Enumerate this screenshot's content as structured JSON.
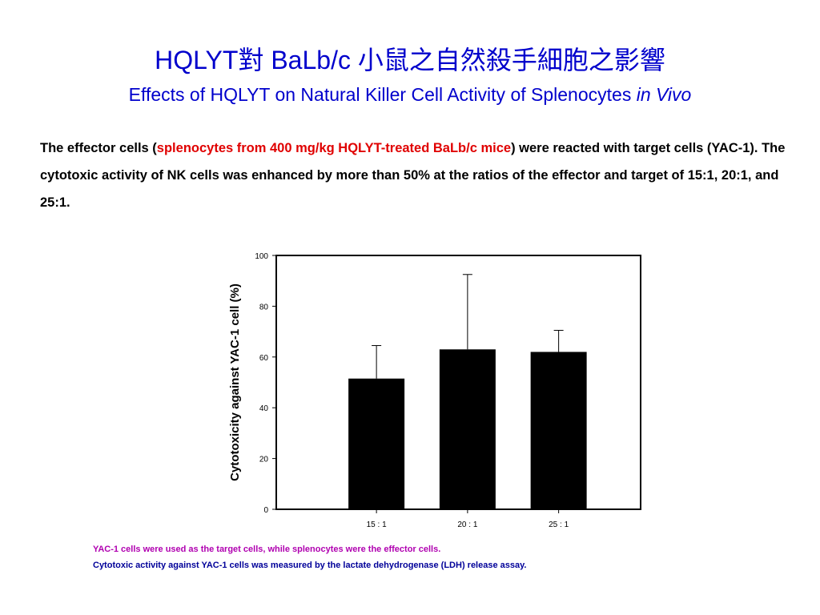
{
  "slide": {
    "title_zh": "HQLYT對 BaLb/c 小鼠之自然殺手細胞之影響",
    "title_en_main": "Effects of HQLYT on Natural Killer Cell Activity of Splenocytes ",
    "title_en_italic": "in Vivo",
    "desc_part1": "The effector cells (",
    "desc_highlight": "splenocytes from 400 mg/kg HQLYT-treated BaLb/c mice",
    "desc_part2": ") were reacted with target cells (YAC-1).  The cytotoxic activity of NK cells was enhanced by more than 50% at the ratios of the effector and target of 15:1, 20:1, and 25:1.",
    "footnote1": "YAC-1 cells were used as the target cells, while splenocytes were the effector cells.",
    "footnote2": "Cytotoxic activity against YAC-1 cells was measured by the lactate dehydrogenase (LDH) release assay.",
    "colors": {
      "title": "#0000cc",
      "highlight": "#e00000",
      "footnote1": "#b000b0",
      "footnote2": "#000099",
      "bar": "#000000"
    }
  },
  "chart_data": {
    "type": "bar",
    "title": "",
    "xlabel": "",
    "ylabel": "Cytotoxicity against YAC-1 cell (%)",
    "categories": [
      "15 : 1",
      "20 : 1",
      "25 : 1"
    ],
    "values": [
      51.5,
      63,
      62
    ],
    "error": [
      13,
      29.5,
      8.5
    ],
    "ylim": [
      0,
      100
    ],
    "yticks": [
      0,
      20,
      40,
      60,
      80,
      100
    ],
    "grid": false,
    "legend": "none"
  }
}
